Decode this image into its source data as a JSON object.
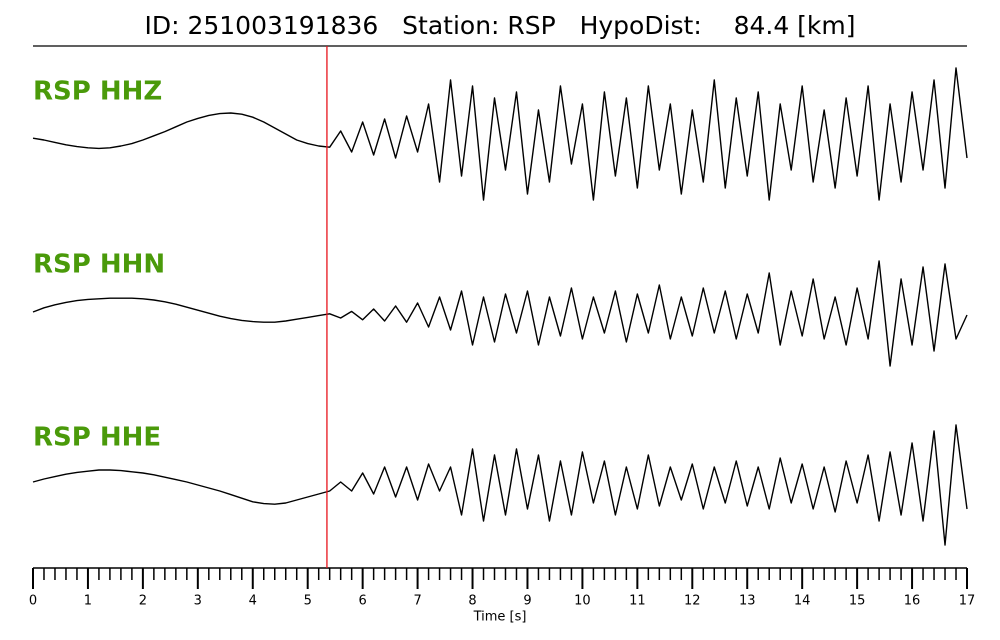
{
  "chart_data": {
    "type": "waveform",
    "title": "ID: 251003191836   Station: RSP   HypoDist:    84.4 [km]",
    "xlabel": "Time [s]",
    "xlim": [
      0,
      17
    ],
    "xticks": [
      0,
      1,
      2,
      3,
      4,
      5,
      6,
      7,
      8,
      9,
      10,
      11,
      12,
      13,
      14,
      15,
      16,
      17
    ],
    "pick": 5.35,
    "pick_color": "#e8141c",
    "label_color": "#4a9a0a",
    "x": [
      0,
      0.2,
      0.4,
      0.6,
      0.8,
      1,
      1.2,
      1.4,
      1.6,
      1.8,
      2,
      2.2,
      2.4,
      2.6,
      2.8,
      3,
      3.2,
      3.4,
      3.6,
      3.8,
      4,
      4.2,
      4.4,
      4.6,
      4.8,
      5,
      5.2,
      5.4,
      5.6,
      5.8,
      6,
      6.2,
      6.4,
      6.6,
      6.8,
      7,
      7.2,
      7.4,
      7.6,
      7.8,
      8,
      8.2,
      8.4,
      8.6,
      8.8,
      9,
      9.2,
      9.4,
      9.6,
      9.8,
      10,
      10.2,
      10.4,
      10.6,
      10.8,
      11,
      11.2,
      11.4,
      11.6,
      11.8,
      12,
      12.2,
      12.4,
      12.6,
      12.8,
      13,
      13.2,
      13.4,
      13.6,
      13.8,
      14,
      14.2,
      14.4,
      14.6,
      14.8,
      15,
      15.2,
      15.4,
      15.6,
      15.8,
      16,
      16.2,
      16.4,
      16.6,
      16.8,
      17
    ],
    "series": [
      {
        "name": "RSP HHZ",
        "color": "#000000",
        "values": [
          0.03,
          0.0,
          -0.04,
          -0.08,
          -0.11,
          -0.13,
          -0.14,
          -0.13,
          -0.1,
          -0.06,
          0.0,
          0.07,
          0.14,
          0.22,
          0.3,
          0.36,
          0.41,
          0.44,
          0.45,
          0.43,
          0.38,
          0.3,
          0.2,
          0.1,
          0.0,
          -0.06,
          -0.1,
          -0.12,
          0.15,
          -0.2,
          0.3,
          -0.25,
          0.35,
          -0.3,
          0.4,
          -0.2,
          0.6,
          -0.7,
          1.0,
          -0.6,
          0.9,
          -1.0,
          0.7,
          -0.5,
          0.8,
          -0.9,
          0.5,
          -0.7,
          0.9,
          -0.4,
          0.6,
          -1.0,
          0.8,
          -0.6,
          0.7,
          -0.8,
          0.9,
          -0.5,
          0.6,
          -0.9,
          0.5,
          -0.7,
          1.0,
          -0.8,
          0.7,
          -0.6,
          0.8,
          -1.0,
          0.6,
          -0.5,
          0.9,
          -0.7,
          0.5,
          -0.8,
          0.7,
          -0.6,
          0.9,
          -1.0,
          0.6,
          -0.7,
          0.8,
          -0.5,
          1.0,
          -0.8,
          1.2,
          -0.3
        ]
      },
      {
        "name": "RSP HHN",
        "color": "#000000",
        "values": [
          0.05,
          0.12,
          0.17,
          0.21,
          0.24,
          0.26,
          0.27,
          0.28,
          0.28,
          0.28,
          0.27,
          0.25,
          0.22,
          0.18,
          0.13,
          0.08,
          0.03,
          -0.02,
          -0.06,
          -0.09,
          -0.11,
          -0.12,
          -0.12,
          -0.1,
          -0.07,
          -0.04,
          -0.01,
          0.02,
          -0.05,
          0.06,
          -0.08,
          0.1,
          -0.1,
          0.15,
          -0.12,
          0.2,
          -0.2,
          0.3,
          -0.25,
          0.4,
          -0.5,
          0.3,
          -0.45,
          0.35,
          -0.3,
          0.4,
          -0.5,
          0.3,
          -0.35,
          0.45,
          -0.4,
          0.3,
          -0.3,
          0.4,
          -0.45,
          0.35,
          -0.3,
          0.5,
          -0.4,
          0.3,
          -0.35,
          0.45,
          -0.3,
          0.4,
          -0.4,
          0.35,
          -0.3,
          0.7,
          -0.5,
          0.4,
          -0.35,
          0.6,
          -0.4,
          0.3,
          -0.5,
          0.45,
          -0.4,
          0.9,
          -0.85,
          0.6,
          -0.5,
          0.8,
          -0.6,
          0.85,
          -0.4,
          0.0
        ]
      },
      {
        "name": "RSP HHE",
        "color": "#000000",
        "values": [
          0.05,
          0.1,
          0.14,
          0.18,
          0.21,
          0.23,
          0.25,
          0.25,
          0.24,
          0.22,
          0.2,
          0.17,
          0.13,
          0.09,
          0.05,
          0.0,
          -0.05,
          -0.1,
          -0.16,
          -0.22,
          -0.28,
          -0.31,
          -0.32,
          -0.3,
          -0.25,
          -0.2,
          -0.15,
          -0.1,
          0.05,
          -0.1,
          0.2,
          -0.15,
          0.3,
          -0.2,
          0.3,
          -0.25,
          0.35,
          -0.1,
          0.3,
          -0.5,
          0.6,
          -0.6,
          0.5,
          -0.5,
          0.6,
          -0.4,
          0.5,
          -0.6,
          0.4,
          -0.5,
          0.55,
          -0.3,
          0.4,
          -0.5,
          0.3,
          -0.4,
          0.5,
          -0.35,
          0.3,
          -0.25,
          0.35,
          -0.4,
          0.3,
          -0.3,
          0.4,
          -0.35,
          0.3,
          -0.4,
          0.45,
          -0.3,
          0.35,
          -0.4,
          0.3,
          -0.45,
          0.4,
          -0.3,
          0.5,
          -0.6,
          0.55,
          -0.5,
          0.7,
          -0.6,
          0.9,
          -1.0,
          1.0,
          -0.4
        ]
      }
    ]
  }
}
